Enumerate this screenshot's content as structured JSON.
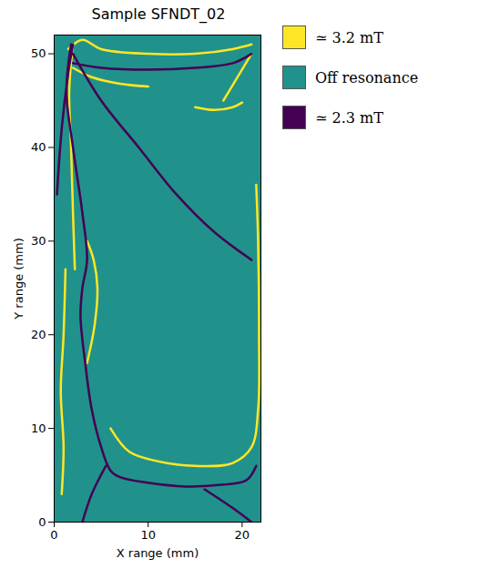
{
  "chart_data": {
    "type": "line",
    "title": "Sample SFNDT_02",
    "x_label": "X range (mm)",
    "y_label": "Y range (mm)",
    "xlim": [
      0,
      22
    ],
    "xticks": [
      0,
      10,
      20
    ],
    "ylim": [
      0,
      52
    ],
    "yticks": [
      0,
      10,
      20,
      30,
      40,
      50
    ],
    "grid": false,
    "legend": "right",
    "series": [
      {
        "name": "≃ 3.2 mT",
        "color": "#fde725",
        "type": "line",
        "x": [
          0.8,
          1.0,
          0.7,
          1.0,
          1.2,
          null,
          2.2,
          2.0,
          1.8,
          1.6,
          2.0,
          null,
          3.5,
          4.3,
          4.6,
          4.2,
          3.5,
          null,
          6,
          8,
          11,
          15,
          19,
          21,
          21.7,
          21.8,
          21.7,
          21.5,
          null,
          2,
          4,
          7,
          10,
          null,
          15,
          17,
          19,
          20,
          null,
          1.5,
          3,
          5,
          10,
          15,
          19,
          21,
          null,
          18,
          19.5,
          21
        ],
        "values": [
          3,
          8,
          14,
          20,
          27,
          null,
          27,
          33,
          40,
          46,
          51,
          null,
          17,
          21,
          25,
          28,
          30,
          null,
          10,
          7.5,
          6.5,
          6,
          6.3,
          8,
          12,
          20,
          30,
          36,
          null,
          48.5,
          47.5,
          46.8,
          46.5,
          null,
          44.3,
          44,
          44.3,
          44.8,
          null,
          50.5,
          51.5,
          50.5,
          50,
          50,
          50.5,
          51,
          null,
          45,
          47.5,
          50
        ]
      },
      {
        "name": "Off resonance",
        "color": "#21918c",
        "type": "area",
        "x": [
          0,
          22
        ],
        "values": [
          52,
          52
        ]
      },
      {
        "name": "≃ 2.3 mT",
        "color": "#440154",
        "type": "line",
        "x": [
          21.5,
          20.5,
          18,
          14,
          10,
          7,
          6,
          5,
          4,
          3.3,
          2.8,
          3,
          3.5,
          3,
          2,
          1.3,
          1.8,
          null,
          5.5,
          4,
          3,
          null,
          16,
          19,
          21,
          null,
          0.3,
          0.8,
          1.5,
          2,
          null,
          2,
          5,
          10,
          15,
          19,
          21,
          null,
          2,
          5,
          9,
          13,
          17,
          21
        ],
        "values": [
          6,
          4.5,
          4,
          3.8,
          4.2,
          4.8,
          5.5,
          8,
          12,
          17,
          22,
          25,
          28,
          33,
          40,
          46,
          51,
          null,
          6,
          3,
          0,
          null,
          3.5,
          1.5,
          0,
          null,
          35,
          42,
          48,
          51,
          null,
          49,
          48.5,
          48.3,
          48.5,
          49,
          50,
          null,
          50,
          45,
          40,
          35,
          31,
          28
        ]
      }
    ]
  }
}
